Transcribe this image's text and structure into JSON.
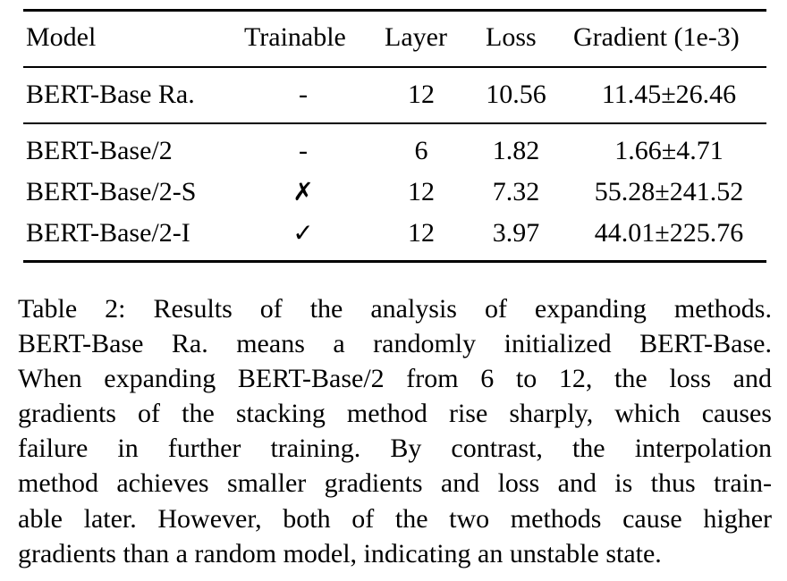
{
  "table": {
    "headers": {
      "model": "Model",
      "trainable": "Trainable",
      "layer": "Layer",
      "loss": "Loss",
      "gradient": "Gradient (1e-3)"
    },
    "rows": [
      {
        "model": "BERT-Base Ra.",
        "trainable": "-",
        "layer": "12",
        "loss": "10.56",
        "gradient": "11.45±26.46"
      },
      {
        "model": "BERT-Base/2",
        "trainable": "-",
        "layer": "6",
        "loss": "1.82",
        "gradient": "1.66±4.71"
      },
      {
        "model": "BERT-Base/2-S",
        "trainable": "✗",
        "layer": "12",
        "loss": "7.32",
        "gradient": "55.28±241.52"
      },
      {
        "model": "BERT-Base/2-I",
        "trainable": "✓",
        "layer": "12",
        "loss": "3.97",
        "gradient": "44.01±225.76"
      }
    ]
  },
  "caption": {
    "lines": [
      "Table 2: Results of the analysis of expanding methods.",
      "BERT-Base Ra. means a randomly initialized BERT-Base.",
      "When expanding BERT-Base/2 from 6 to 12, the loss and",
      "gradients of the stacking method rise sharply, which causes",
      "failure in further training. By contrast, the interpolation",
      "method achieves smaller gradients and loss and is thus train-",
      "able later. However, both of the two methods cause higher",
      "gradients than a random model, indicating an unstable state."
    ]
  }
}
